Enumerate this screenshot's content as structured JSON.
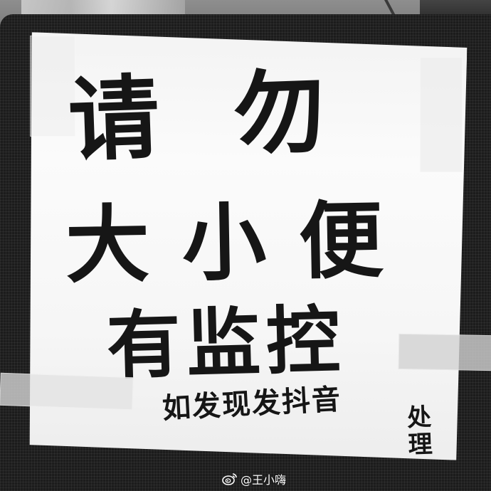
{
  "sign": {
    "line1": "请勿",
    "line2": "大小便",
    "line3": "有监控",
    "line4": "如发现发抖音",
    "line4_tail": "处理"
  },
  "watermark": {
    "icon": "weibo-icon",
    "text": "@王小嗨"
  },
  "colors": {
    "ink": "#161616",
    "paper": "#f6f6f6",
    "background": "#1c1c1c"
  }
}
